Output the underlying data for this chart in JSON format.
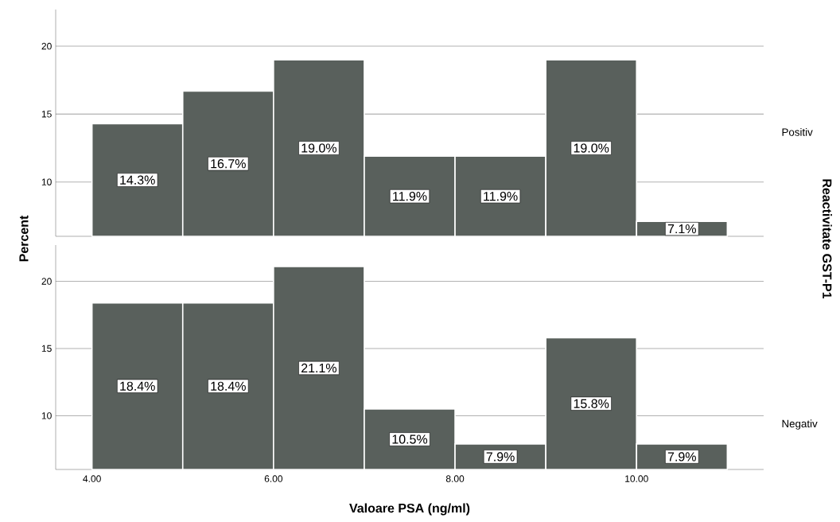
{
  "chart_data": [
    {
      "type": "histogram",
      "ylabel": "Percent",
      "y2label": "Reactivitate GST-P1",
      "annotations": [
        "Positiv"
      ],
      "bins": [
        4,
        5,
        6,
        7,
        8,
        9,
        10,
        11
      ],
      "values": [
        14.3,
        16.7,
        19.0,
        11.9,
        11.9,
        19.0,
        7.1
      ],
      "value_labels": [
        "14.3%",
        "16.7%",
        "19.0%",
        "11.9%",
        "11.9%",
        "19.0%",
        "7.1%"
      ],
      "color": "#59605c",
      "xlim": [
        3.6,
        11.4
      ],
      "ylim": [
        6,
        22.7
      ],
      "yticks": [
        10,
        15,
        20
      ],
      "grid": "y",
      "tick_labels": "y"
    },
    {
      "type": "histogram",
      "xlabel": "Valoare PSA (ng/ml)",
      "annotations": [
        "Negativ"
      ],
      "bins": [
        4,
        5,
        6,
        7,
        8,
        9,
        10,
        11
      ],
      "values": [
        18.4,
        18.4,
        21.1,
        10.5,
        7.9,
        15.8,
        7.9
      ],
      "value_labels": [
        "18.4%",
        "18.4%",
        "21.1%",
        "10.5%",
        "7.9%",
        "15.8%",
        "7.9%"
      ],
      "color": "#59605c",
      "xlim": [
        3.6,
        11.4
      ],
      "ylim": [
        6,
        22.7
      ],
      "xticks": [
        {
          "value": 4,
          "label": "4.00"
        },
        {
          "value": 6,
          "label": "6.00"
        },
        {
          "value": 8,
          "label": "8.00"
        },
        {
          "value": 10,
          "label": "10.00"
        }
      ],
      "yticks": [
        10,
        15,
        20
      ],
      "grid": "y"
    }
  ]
}
